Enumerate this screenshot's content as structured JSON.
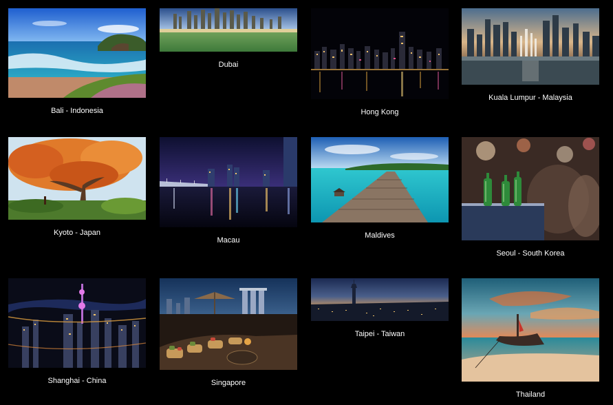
{
  "gallery": {
    "items": [
      {
        "caption": "Bali - Indonesia"
      },
      {
        "caption": "Dubai"
      },
      {
        "caption": "Hong Kong"
      },
      {
        "caption": "Kuala Lumpur - Malaysia"
      },
      {
        "caption": "Kyoto - Japan"
      },
      {
        "caption": "Macau"
      },
      {
        "caption": "Maldives"
      },
      {
        "caption": "Seoul - South Korea"
      },
      {
        "caption": "Shanghai - China"
      },
      {
        "caption": "Singapore"
      },
      {
        "caption": "Taipei - Taiwan"
      },
      {
        "caption": "Thailand"
      }
    ]
  },
  "colors": {
    "background": "#000000",
    "caption": "#ffffff"
  }
}
